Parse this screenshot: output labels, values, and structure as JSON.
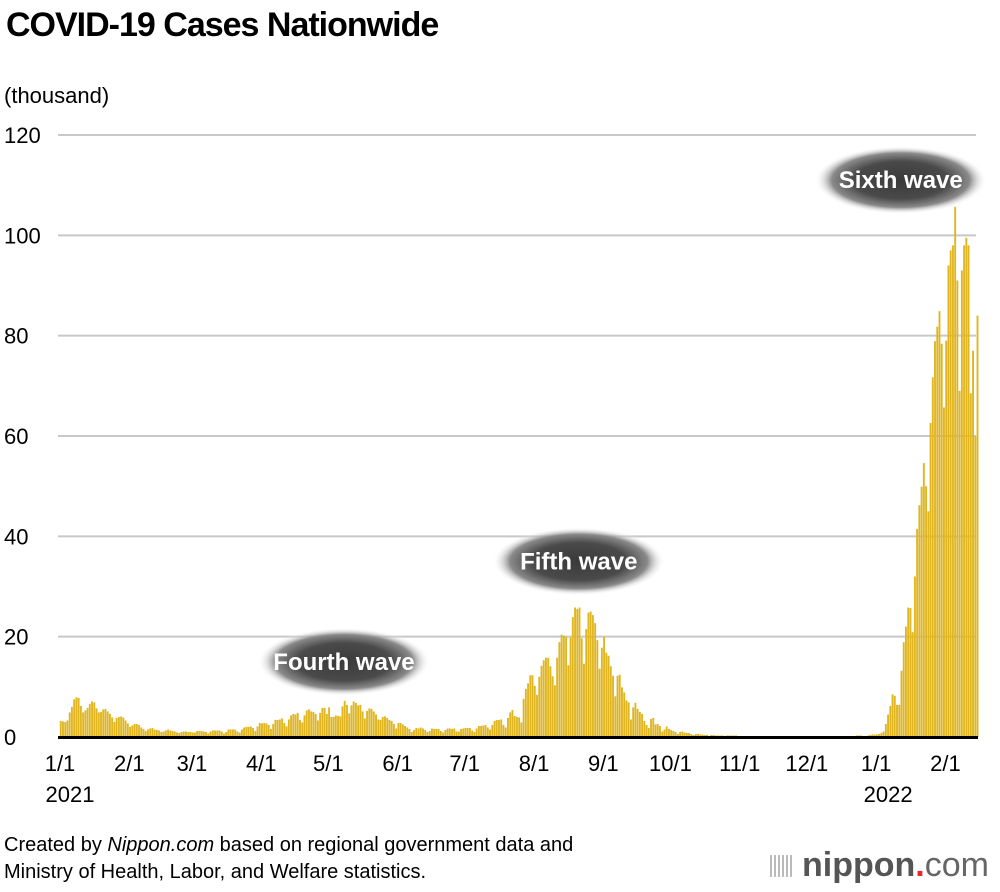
{
  "chart_data": {
    "type": "bar",
    "title": "COVID-19 Cases Nationwide",
    "ylabel": "(thousand)",
    "xlabel": "",
    "ylim": [
      0,
      120
    ],
    "yticks": [
      0,
      20,
      40,
      60,
      80,
      100,
      120
    ],
    "grid": true,
    "start_date": "2021-01-01",
    "end_date": "2022-02-15",
    "color": "#e0b623",
    "xticks": [
      {
        "label": "1/1",
        "day": 0,
        "year": "2021"
      },
      {
        "label": "2/1",
        "day": 31
      },
      {
        "label": "3/1",
        "day": 59
      },
      {
        "label": "4/1",
        "day": 90
      },
      {
        "label": "5/1",
        "day": 120
      },
      {
        "label": "6/1",
        "day": 151
      },
      {
        "label": "7/1",
        "day": 181
      },
      {
        "label": "8/1",
        "day": 212
      },
      {
        "label": "9/1",
        "day": 243
      },
      {
        "label": "10/1",
        "day": 273
      },
      {
        "label": "11/1",
        "day": 304
      },
      {
        "label": "12/1",
        "day": 334
      },
      {
        "label": "1/1",
        "day": 365,
        "year": "2022"
      },
      {
        "label": "2/1",
        "day": 396
      }
    ],
    "annotations": [
      {
        "text": "Fourth wave",
        "day": 127,
        "value": 15
      },
      {
        "text": "Fifth wave",
        "day": 232,
        "value": 35
      },
      {
        "text": "Sixth wave",
        "day": 376,
        "value": 111
      }
    ],
    "values": [
      3.2,
      3.1,
      3.0,
      3.3,
      4.9,
      6.0,
      7.5,
      7.9,
      7.8,
      6.2,
      4.9,
      5.3,
      5.8,
      6.6,
      7.1,
      6.9,
      5.7,
      4.9,
      5.0,
      5.5,
      5.6,
      5.1,
      4.6,
      3.9,
      3.0,
      3.8,
      4.0,
      4.1,
      3.9,
      3.3,
      2.7,
      2.0,
      2.3,
      2.6,
      2.6,
      2.4,
      1.9,
      1.6,
      1.2,
      1.5,
      1.7,
      1.8,
      1.5,
      1.4,
      1.3,
      1.0,
      1.1,
      1.3,
      1.5,
      1.3,
      1.2,
      1.1,
      0.9,
      0.8,
      1.0,
      1.1,
      1.1,
      1.0,
      1.0,
      0.9,
      0.9,
      1.2,
      1.2,
      1.2,
      1.1,
      1.0,
      0.7,
      1.1,
      1.3,
      1.3,
      1.3,
      1.3,
      1.1,
      0.7,
      1.0,
      1.5,
      1.5,
      1.5,
      1.5,
      1.1,
      0.9,
      1.5,
      1.9,
      2.0,
      2.0,
      2.1,
      1.8,
      1.2,
      2.1,
      2.8,
      2.7,
      2.8,
      2.7,
      2.4,
      1.6,
      2.6,
      3.4,
      3.4,
      3.5,
      3.7,
      2.8,
      2.1,
      3.5,
      4.3,
      4.6,
      4.5,
      4.8,
      3.4,
      2.9,
      4.3,
      5.3,
      5.5,
      5.1,
      5.0,
      4.6,
      3.3,
      4.8,
      5.8,
      5.8,
      4.6,
      5.9,
      4.0,
      4.0,
      4.3,
      4.2,
      4.1,
      6.1,
      7.2,
      6.4,
      4.7,
      6.3,
      7.1,
      6.8,
      6.3,
      6.4,
      5.1,
      3.7,
      5.2,
      5.7,
      5.6,
      5.1,
      4.5,
      3.5,
      3.4,
      4.0,
      4.1,
      3.8,
      3.4,
      3.2,
      2.6,
      1.7,
      2.8,
      2.8,
      2.5,
      2.2,
      1.9,
      1.6,
      1.0,
      1.4,
      1.8,
      1.7,
      1.9,
      1.7,
      1.4,
      1.0,
      1.2,
      1.7,
      1.6,
      1.6,
      1.6,
      1.2,
      0.9,
      1.4,
      1.7,
      1.7,
      1.6,
      1.7,
      1.1,
      1.1,
      1.6,
      1.7,
      1.8,
      1.8,
      1.8,
      1.3,
      1.0,
      1.7,
      2.2,
      2.2,
      2.3,
      2.4,
      1.9,
      1.5,
      2.4,
      3.2,
      3.4,
      3.4,
      3.5,
      2.4,
      1.9,
      3.8,
      4.9,
      5.4,
      4.2,
      4.0,
      3.9,
      2.9,
      7.6,
      9.6,
      10.7,
      12.3,
      12.3,
      10.2,
      8.4,
      12.0,
      14.2,
      15.3,
      15.8,
      15.8,
      14.1,
      12.1,
      10.3,
      15.8,
      18.9,
      20.4,
      20.2,
      20.0,
      14.3,
      19.8,
      23.9,
      25.8,
      25.5,
      25.8,
      19.7,
      14.6,
      21.5,
      24.8,
      25.0,
      24.3,
      22.7,
      19.3,
      13.6,
      17.8,
      20.0,
      16.8,
      16.2,
      14.1,
      12.2,
      8.1,
      12.2,
      12.4,
      9.9,
      8.9,
      7.3,
      6.9,
      3.5,
      5.9,
      6.8,
      5.6,
      5.0,
      4.6,
      3.2,
      2.4,
      1.8,
      3.6,
      3.8,
      2.5,
      2.6,
      2.2,
      1.1,
      1.5,
      2.1,
      1.6,
      1.4,
      1.2,
      1.0,
      0.6,
      1.0,
      1.1,
      0.9,
      0.8,
      0.8,
      0.6,
      0.4,
      0.6,
      0.6,
      0.5,
      0.5,
      0.4,
      0.4,
      0.2,
      0.4,
      0.4,
      0.3,
      0.3,
      0.3,
      0.3,
      0.2,
      0.3,
      0.3,
      0.3,
      0.3,
      0.3,
      0.2,
      0.1,
      0.1,
      0.2,
      0.2,
      0.2,
      0.2,
      0.2,
      0.1,
      0.1,
      0.2,
      0.2,
      0.2,
      0.2,
      0.1,
      0.1,
      0.1,
      0.2,
      0.2,
      0.2,
      0.2,
      0.1,
      0.1,
      0.1,
      0.1,
      0.1,
      0.2,
      0.1,
      0.1,
      0.1,
      0.1,
      0.1,
      0.1,
      0.1,
      0.1,
      0.1,
      0.1,
      0.1,
      0.1,
      0.2,
      0.1,
      0.1,
      0.1,
      0.1,
      0.1,
      0.1,
      0.2,
      0.2,
      0.2,
      0.2,
      0.1,
      0.2,
      0.2,
      0.3,
      0.3,
      0.3,
      0.2,
      0.2,
      0.3,
      0.4,
      0.5,
      0.5,
      0.5,
      0.6,
      0.8,
      1.1,
      2.6,
      4.5,
      6.2,
      8.5,
      8.2,
      6.4,
      6.4,
      13.2,
      18.9,
      22.0,
      25.8,
      25.7,
      20.9,
      32.0,
      41.5,
      46.2,
      49.9,
      54.6,
      50.0,
      45.0,
      62.6,
      71.7,
      78.9,
      81.8,
      84.9,
      78.4,
      65.7,
      79.0,
      94.0,
      97.0,
      98.0,
      105.7,
      91.0,
      69.0,
      93.0,
      98.0,
      99.5,
      98.0,
      68.5,
      77.0,
      60.0,
      84.0
    ]
  },
  "footer": {
    "credit_prefix": "Created by ",
    "credit_brand": "Nippon.com",
    "credit_line1_rest": " based on regional government data and",
    "credit_line2": "Ministry of Health, Labor, and Welfare statistics.",
    "logo_main": "nippon",
    "logo_dot": ".",
    "logo_suffix": "com"
  }
}
